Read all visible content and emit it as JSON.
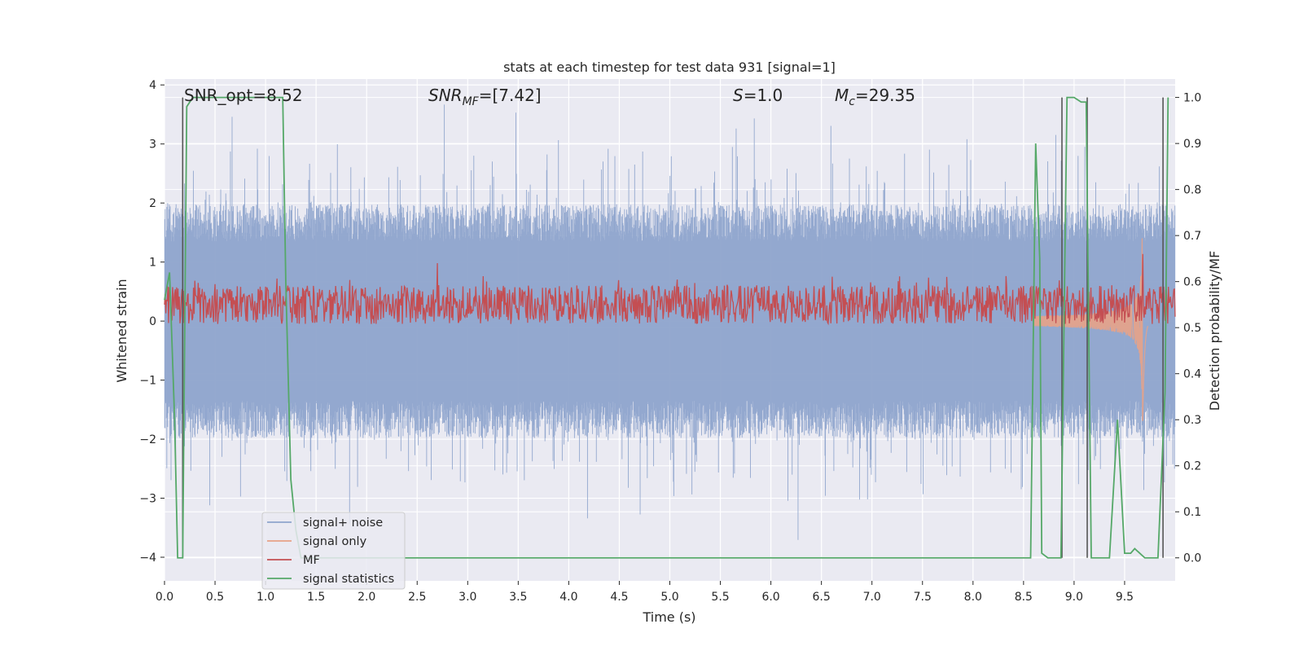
{
  "chart_data": {
    "type": "line",
    "title": "stats at each timestep for test data 931 [signal=1]",
    "xlabel": "Time (s)",
    "ylabel": "Whitened strain",
    "y2label": "Detection probability/MF",
    "xlim": [
      0.0,
      10.0
    ],
    "ylim": [
      -4.4,
      4.1
    ],
    "y2lim": [
      -0.05,
      1.04
    ],
    "x_ticks": [
      0.0,
      0.5,
      1.0,
      1.5,
      2.0,
      2.5,
      3.0,
      3.5,
      4.0,
      4.5,
      5.0,
      5.5,
      6.0,
      6.5,
      7.0,
      7.5,
      8.0,
      8.5,
      9.0,
      9.5
    ],
    "x_tick_labels": [
      "0.0",
      "0.5",
      "1.0",
      "1.5",
      "2.0",
      "2.5",
      "3.0",
      "3.5",
      "4.0",
      "4.5",
      "5.0",
      "5.5",
      "6.0",
      "6.5",
      "7.0",
      "7.5",
      "8.0",
      "8.5",
      "9.0",
      "9.5"
    ],
    "y_ticks": [
      -4,
      -3,
      -2,
      -1,
      0,
      1,
      2,
      3,
      4
    ],
    "y_tick_labels": [
      "−4",
      "−3",
      "−2",
      "−1",
      "0",
      "1",
      "2",
      "3",
      "4"
    ],
    "y2_ticks": [
      0.0,
      0.1,
      0.2,
      0.3,
      0.4,
      0.5,
      0.6,
      0.7,
      0.8,
      0.9,
      1.0
    ],
    "y2_tick_labels": [
      "0.0",
      "0.1",
      "0.2",
      "0.3",
      "0.4",
      "0.5",
      "0.6",
      "0.7",
      "0.8",
      "0.9",
      "1.0"
    ],
    "grid": true,
    "legend_position": "lower-left",
    "annotations": {
      "snr_opt": "SNR_opt=8.52",
      "snr_mf_symbol": "SNR",
      "snr_mf_sub": "MF",
      "snr_mf_value": "=[7.42]",
      "s_symbol": "S",
      "s_value": "=1.0",
      "mc_symbol": "M",
      "mc_sub": "c",
      "mc_value": "=29.35"
    },
    "series": [
      {
        "name": "signal+ noise",
        "axis": "left",
        "color": "#8ea4cc",
        "style": "noise",
        "envelope": 1.8,
        "spike_peak": 3.7
      },
      {
        "name": "signal only",
        "axis": "left",
        "color": "#e8a287",
        "style": "chirp",
        "start": 8.6,
        "peak_time": 9.68,
        "peak_amp": 1.9
      },
      {
        "name": "MF",
        "axis": "right",
        "color": "#c44e52",
        "style": "noise-band",
        "base": 0.55,
        "low": 0.52,
        "high": 0.59,
        "peak_time": 2.7,
        "peak_value": 0.64,
        "late_peak_time": 9.68,
        "late_peak_value": 0.66
      },
      {
        "name": "signal statistics",
        "axis": "right",
        "color": "#55a868",
        "style": "line",
        "x": [
          0.0,
          0.05,
          0.1,
          0.13,
          0.18,
          0.22,
          0.28,
          1.17,
          1.2,
          1.25,
          1.3,
          1.35,
          1.5,
          3.0,
          5.0,
          7.0,
          8.57,
          8.62,
          8.66,
          8.68,
          8.74,
          8.87,
          8.93,
          9.0,
          9.07,
          9.12,
          9.17,
          9.35,
          9.43,
          9.5,
          9.56,
          9.6,
          9.7,
          9.77,
          9.83,
          9.9,
          9.93
        ],
        "y": [
          0.56,
          0.62,
          0.3,
          0.0,
          0.0,
          0.98,
          1.0,
          1.0,
          0.6,
          0.17,
          0.06,
          0.0,
          0.0,
          0.0,
          0.0,
          0.0,
          0.0,
          0.9,
          0.65,
          0.01,
          0.0,
          0.0,
          1.0,
          1.0,
          0.99,
          0.99,
          0.0,
          0.0,
          0.3,
          0.01,
          0.01,
          0.02,
          0.0,
          0.0,
          0.0,
          0.36,
          1.0
        ]
      },
      {
        "name": "",
        "axis": "right",
        "color": "#555555",
        "style": "vlines",
        "x": [
          0.18,
          8.88,
          9.13,
          9.88
        ]
      }
    ]
  }
}
